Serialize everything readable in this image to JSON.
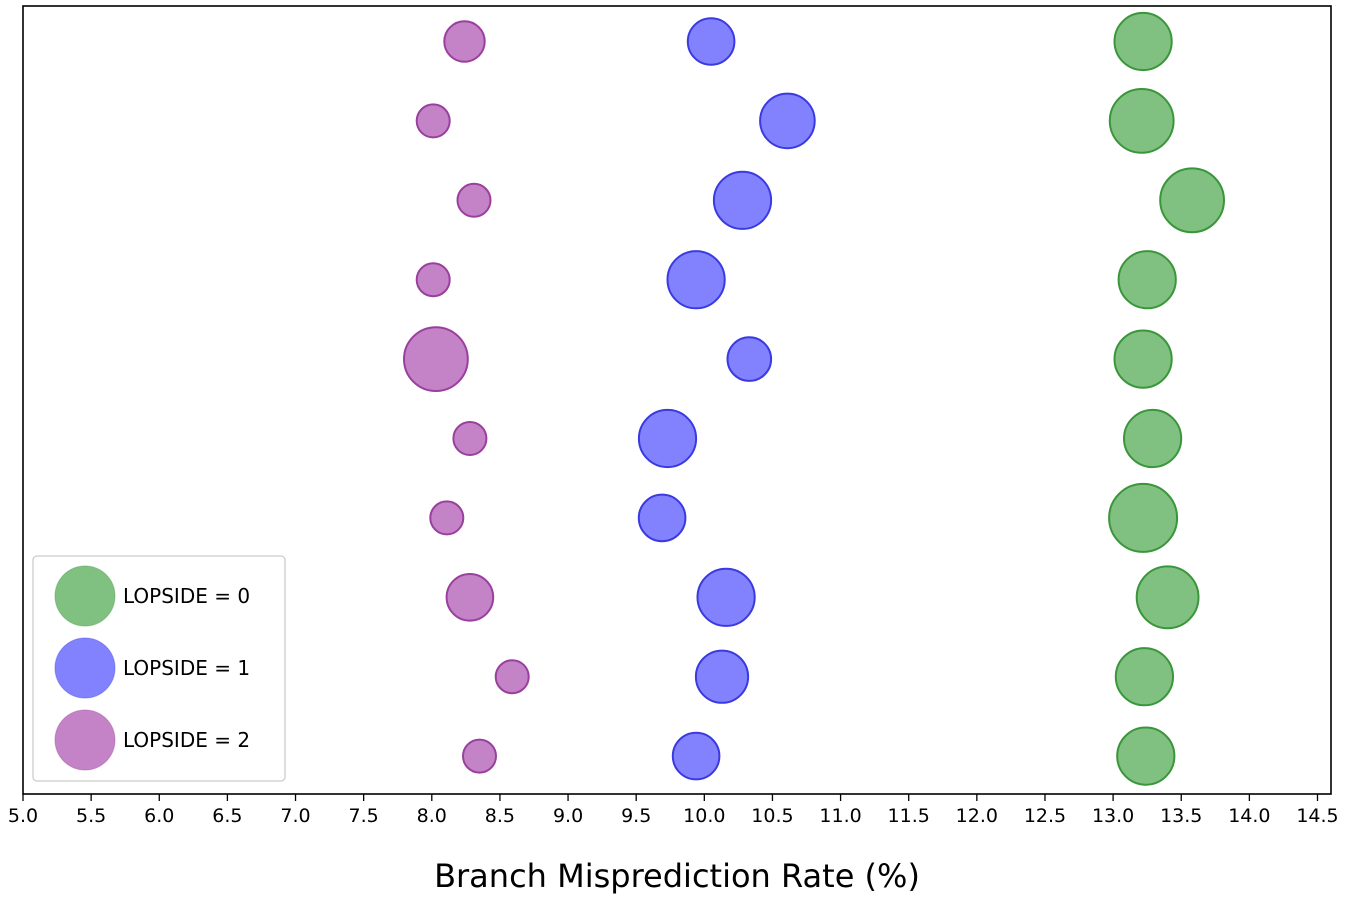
{
  "chart_data": {
    "type": "scatter",
    "title": "",
    "xlabel": "Branch Misprediction Rate (%)",
    "ylabel": "",
    "xlim": [
      5.0,
      14.5
    ],
    "xticks": [
      "5.0",
      "5.5",
      "6.0",
      "6.5",
      "7.0",
      "7.5",
      "8.0",
      "8.5",
      "9.0",
      "9.5",
      "10.0",
      "10.5",
      "11.0",
      "11.5",
      "12.0",
      "12.5",
      "13.0",
      "13.5",
      "14.0",
      "14.5"
    ],
    "grid": false,
    "legend_position": "lower-left",
    "note": "Bubble size shown by marker area (relative); rows are unlabeled on the y axis, ordered top to bottom.",
    "series": [
      {
        "name": "LOPSIDE = 0",
        "color": "#4aa54a",
        "edge": "#3a963a",
        "x": [
          13.22,
          13.21,
          13.58,
          13.25,
          13.22,
          13.29,
          13.22,
          13.4,
          13.23,
          13.24
        ],
        "size": [
          0.6,
          0.75,
          0.75,
          0.6,
          0.6,
          0.6,
          0.85,
          0.7,
          0.6,
          0.6
        ]
      },
      {
        "name": "LOPSIDE = 1",
        "color": "#4d4dff",
        "edge": "#3a3ae0",
        "x": [
          10.05,
          10.61,
          10.28,
          9.94,
          10.33,
          9.73,
          9.69,
          10.16,
          10.13,
          9.94
        ],
        "size": [
          0.4,
          0.55,
          0.6,
          0.6,
          0.35,
          0.6,
          0.4,
          0.6,
          0.5,
          0.4
        ]
      },
      {
        "name": "LOPSIDE = 2",
        "color": "#aa4fae",
        "edge": "#9a3f9e",
        "x": [
          8.24,
          8.01,
          8.31,
          8.01,
          8.03,
          8.28,
          8.11,
          8.28,
          8.59,
          8.35
        ],
        "size": [
          0.3,
          0.2,
          0.2,
          0.2,
          0.75,
          0.2,
          0.2,
          0.4,
          0.2,
          0.2
        ]
      }
    ]
  }
}
